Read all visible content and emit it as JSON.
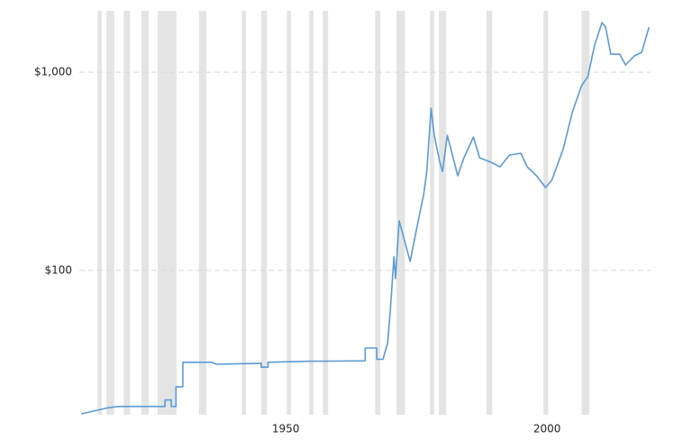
{
  "chart_data": {
    "type": "line",
    "log_scale_y": true,
    "color": "#5b9bd5",
    "band_color": "#e4e4e4",
    "grid": true,
    "xlim": [
      1910.5,
      2019.8
    ],
    "ylim": [
      18.7,
      2040
    ],
    "xticks": [
      1950,
      2000
    ],
    "yticks": [
      {
        "value": 100,
        "label": "$100"
      },
      {
        "value": 1000,
        "label": "$1,000"
      }
    ],
    "recessions": [
      [
        1914.0,
        1914.8
      ],
      [
        1915.7,
        1917.2
      ],
      [
        1919.0,
        1920.2
      ],
      [
        1922.4,
        1923.8
      ],
      [
        1925.5,
        1929.1
      ],
      [
        1933.4,
        1934.8
      ],
      [
        1941.6,
        1942.4
      ],
      [
        1945.3,
        1946.4
      ],
      [
        1950.2,
        1951.0
      ],
      [
        1954.5,
        1955.3
      ],
      [
        1957.1,
        1958.1
      ],
      [
        1967.1,
        1968.1
      ],
      [
        1971.2,
        1972.8
      ],
      [
        1977.6,
        1978.4
      ],
      [
        1979.3,
        1980.7
      ],
      [
        1988.4,
        1989.5
      ],
      [
        1999.3,
        2000.2
      ],
      [
        2006.6,
        2008.1
      ]
    ],
    "x": [
      1910.9,
      1915.7,
      1917.8,
      1926.9,
      1926.9,
      1928.1,
      1928.1,
      1929.0,
      1929.0,
      1930.3,
      1930.3,
      1935.9,
      1936.7,
      1945.3,
      1945.3,
      1946.6,
      1946.6,
      1954.0,
      1965.2,
      1965.2,
      1967.4,
      1967.4,
      1968.6,
      1969.5,
      1970.0,
      1970.7,
      1971.0,
      1971.7,
      1972.4,
      1973.8,
      1975.0,
      1976.4,
      1977.0,
      1977.8,
      1978.4,
      1979.5,
      1980.0,
      1980.9,
      1981.6,
      1982.9,
      1984.1,
      1985.9,
      1987.1,
      1989.3,
      1991.0,
      1992.8,
      1995.0,
      1996.2,
      1998.0,
      1999.7,
      2000.9,
      2003.1,
      2004.8,
      2006.6,
      2007.8,
      2009.1,
      2010.5,
      2011.2,
      2012.2,
      2013.9,
      2015.0,
      2016.7,
      2018.1,
      2019.5
    ],
    "values": [
      18.9,
      20.2,
      20.6,
      20.6,
      22.2,
      22.2,
      20.6,
      20.6,
      25.9,
      25.9,
      34.4,
      34.4,
      33.6,
      34.0,
      32.5,
      32.5,
      34.4,
      34.8,
      35.0,
      40.6,
      40.6,
      35.6,
      35.6,
      43.0,
      62.0,
      117,
      91,
      178,
      152,
      111,
      160,
      243,
      316,
      658,
      481,
      351,
      316,
      481,
      410,
      300,
      370,
      471,
      370,
      351,
      333,
      382,
      390,
      333,
      300,
      262,
      285,
      410,
      624,
      855,
      949,
      1369,
      1778,
      1688,
      1233,
      1233,
      1088,
      1208,
      1259,
      1688
    ]
  }
}
